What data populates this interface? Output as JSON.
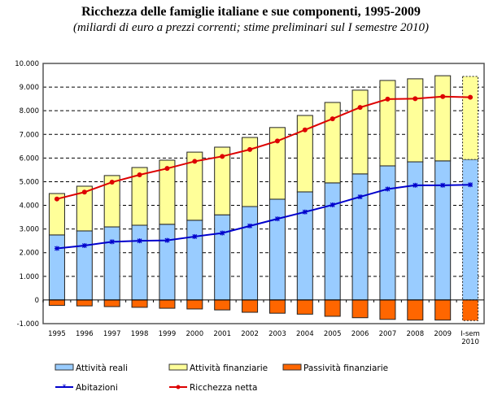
{
  "title": "Ricchezza delle famiglie italiane e sue componenti, 1995-2009",
  "subtitle": "(miliardi di euro a prezzi correnti; stime preliminari sul I semestre 2010)",
  "chart_data": {
    "type": "bar",
    "stacked": true,
    "categories": [
      "1995",
      "1996",
      "1997",
      "1998",
      "1999",
      "2000",
      "2001",
      "2002",
      "2003",
      "2004",
      "2005",
      "2006",
      "2007",
      "2008",
      "2009",
      "I-sem 2010"
    ],
    "ylim": [
      -1000,
      10000
    ],
    "yticks": [
      "-1.000",
      "0",
      "1.000",
      "2.000",
      "3.000",
      "4.000",
      "5.000",
      "6.000",
      "7.000",
      "8.000",
      "9.000",
      "10.000"
    ],
    "grid": true,
    "legend_position": "bottom",
    "series": [
      {
        "name": "Attività reali",
        "kind": "bar",
        "color": "#99CCFF",
        "values": [
          2750,
          2920,
          3090,
          3160,
          3200,
          3370,
          3600,
          3950,
          4260,
          4570,
          4950,
          5330,
          5670,
          5840,
          5880,
          5940
        ]
      },
      {
        "name": "Attività finanziarie",
        "kind": "bar",
        "color": "#FFFF99",
        "values": [
          1750,
          1890,
          2170,
          2440,
          2710,
          2880,
          2860,
          2920,
          3030,
          3230,
          3400,
          3540,
          3610,
          3510,
          3600,
          3510
        ]
      },
      {
        "name": "Passività finanziarie",
        "kind": "bar",
        "color": "#FF6600",
        "values": [
          -230,
          -250,
          -280,
          -310,
          -350,
          -380,
          -420,
          -520,
          -560,
          -600,
          -690,
          -750,
          -820,
          -850,
          -850,
          -870
        ]
      },
      {
        "name": "Abitazioni",
        "kind": "line",
        "color": "#0000CC",
        "marker": "asterisk",
        "values": [
          2180,
          2300,
          2460,
          2500,
          2520,
          2680,
          2830,
          3130,
          3430,
          3720,
          4020,
          4360,
          4690,
          4850,
          4850,
          4870
        ]
      },
      {
        "name": "Ricchezza netta",
        "kind": "line",
        "color": "#DD0000",
        "marker": "circle",
        "values": [
          4270,
          4560,
          4980,
          5290,
          5560,
          5860,
          6070,
          6360,
          6720,
          7190,
          7660,
          8140,
          8490,
          8510,
          8600,
          8570
        ]
      }
    ],
    "estimated_category": "I-sem 2010"
  }
}
